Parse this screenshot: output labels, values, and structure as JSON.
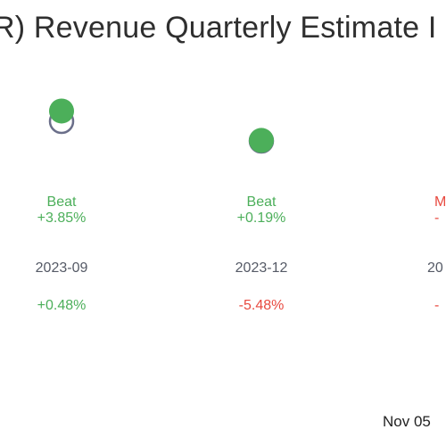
{
  "title": "R) Revenue Quarterly Estimate I",
  "footer_date": "Nov 05",
  "colors": {
    "beat": "#4caf5a",
    "miss": "#e8493f",
    "estimate_outline": "#6b6f8a",
    "text_dark": "#2f2f2f",
    "date_text": "#555a66"
  },
  "chart_data": {
    "type": "scatter",
    "title": "R) Revenue Quarterly Estimate I",
    "categories": [
      "2023-09",
      "2023-12",
      "20"
    ],
    "series": [
      {
        "values": [
          1.0385,
          1.0019,
          null
        ]
      },
      {
        "values": [
          1.0,
          1.0,
          null
        ]
      }
    ],
    "columns": [
      {
        "date": "2023-09",
        "status": "Beat",
        "surprise": "+3.85%",
        "change": "+0.48%",
        "status_color": "beat",
        "change_color": "beat"
      },
      {
        "date": "2023-12",
        "status": "Beat",
        "surprise": "+0.19%",
        "change": "-5.48%",
        "status_color": "beat",
        "change_color": "miss"
      },
      {
        "date": "20",
        "status": "M",
        "surprise": "-",
        "change": "-",
        "status_color": "miss",
        "change_color": "miss"
      }
    ],
    "grid": false,
    "legend": "none"
  }
}
